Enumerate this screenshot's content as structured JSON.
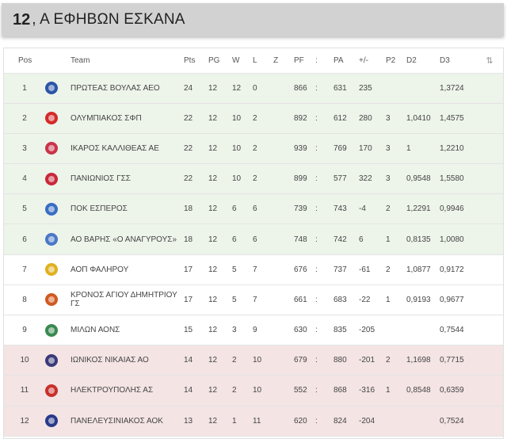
{
  "header": {
    "number": "12",
    "title": ", Α ΕΦΗΒΩΝ ΕΣΚΑΝΑ"
  },
  "columns": {
    "pos": "Pos",
    "team": "Team",
    "pts": "Pts",
    "pg": "PG",
    "w": "W",
    "l": "L",
    "z": "Z",
    "pf": "PF",
    "colon": ":",
    "pa": "PA",
    "diff": "+/-",
    "p2": "P2",
    "d2": "D2",
    "d3": "D3",
    "sort_icon": "sort-arrows-icon"
  },
  "rows": [
    {
      "pos": "1",
      "team": "ΠΡΩΤΕΑΣ ΒΟΥΛΑΣ ΑΕΟ",
      "pts": "24",
      "pg": "12",
      "w": "12",
      "l": "0",
      "pf": "866",
      "pa": "631",
      "diff": "235",
      "p2": "",
      "d2": "",
      "d3": "1,3724",
      "zone": "green",
      "logo_color": "#2a56a8"
    },
    {
      "pos": "2",
      "team": "ΟΛΥΜΠΙΑΚΟΣ ΣΦΠ",
      "pts": "22",
      "pg": "12",
      "w": "10",
      "l": "2",
      "pf": "892",
      "pa": "612",
      "diff": "280",
      "p2": "3",
      "d2": "1,0410",
      "d3": "1,4575",
      "zone": "green",
      "logo_color": "#d42a2a"
    },
    {
      "pos": "3",
      "team": "ΙΚΑΡΟΣ ΚΑΛΛΙΘΕΑΣ ΑΕ",
      "pts": "22",
      "pg": "12",
      "w": "10",
      "l": "2",
      "pf": "939",
      "pa": "769",
      "diff": "170",
      "p2": "3",
      "d2": "1",
      "d3": "1,2210",
      "zone": "green",
      "logo_color": "#c9344a"
    },
    {
      "pos": "4",
      "team": "ΠΑΝΙΩΝΙΟΣ ΓΣΣ",
      "pts": "22",
      "pg": "12",
      "w": "10",
      "l": "2",
      "pf": "899",
      "pa": "577",
      "diff": "322",
      "p2": "3",
      "d2": "0,9548",
      "d3": "1,5580",
      "zone": "green",
      "logo_color": "#c8283a"
    },
    {
      "pos": "5",
      "team": "ΠΟΚ ΕΣΠΕΡΟΣ",
      "pts": "18",
      "pg": "12",
      "w": "6",
      "l": "6",
      "pf": "739",
      "pa": "743",
      "diff": "-4",
      "p2": "2",
      "d2": "1,2291",
      "d3": "0,9946",
      "zone": "green",
      "logo_color": "#3a6ec4"
    },
    {
      "pos": "6",
      "team": "ΑΟ ΒΑΡΗΣ «Ο ΑΝΑΓΥΡΟΥΣ»",
      "pts": "18",
      "pg": "12",
      "w": "6",
      "l": "6",
      "pf": "748",
      "pa": "742",
      "diff": "6",
      "p2": "1",
      "d2": "0,8135",
      "d3": "1,0080",
      "zone": "green",
      "logo_color": "#4a78c8"
    },
    {
      "pos": "7",
      "team": "ΑΟΠ ΦΑΛΗΡΟΥ",
      "pts": "17",
      "pg": "12",
      "w": "5",
      "l": "7",
      "pf": "676",
      "pa": "737",
      "diff": "-61",
      "p2": "2",
      "d2": "1,0877",
      "d3": "0,9172",
      "zone": "white",
      "logo_color": "#e0b020"
    },
    {
      "pos": "8",
      "team": "ΚΡΟΝΟΣ ΑΓΙΟΥ ΔΗΜΗΤΡΙΟΥ ΓΣ",
      "pts": "17",
      "pg": "12",
      "w": "5",
      "l": "7",
      "pf": "661",
      "pa": "683",
      "diff": "-22",
      "p2": "1",
      "d2": "0,9193",
      "d3": "0,9677",
      "zone": "white",
      "logo_color": "#d05a20"
    },
    {
      "pos": "9",
      "team": "ΜΙΛΩΝ ΑΟΝΣ",
      "pts": "15",
      "pg": "12",
      "w": "3",
      "l": "9",
      "pf": "630",
      "pa": "835",
      "diff": "-205",
      "p2": "",
      "d2": "",
      "d3": "0,7544",
      "zone": "white",
      "logo_color": "#3a8a50"
    },
    {
      "pos": "10",
      "team": "ΙΩΝΙΚΟΣ ΝΙΚΑΙΑΣ ΑΟ",
      "pts": "14",
      "pg": "12",
      "w": "2",
      "l": "10",
      "pf": "679",
      "pa": "880",
      "diff": "-201",
      "p2": "2",
      "d2": "1,1698",
      "d3": "0,7715",
      "zone": "red",
      "logo_color": "#3a3a7a"
    },
    {
      "pos": "11",
      "team": "ΗΛΕΚΤΡΟΥΠΟΛΗΣ ΑΣ",
      "pts": "14",
      "pg": "12",
      "w": "2",
      "l": "10",
      "pf": "552",
      "pa": "868",
      "diff": "-316",
      "p2": "1",
      "d2": "0,8548",
      "d3": "0,6359",
      "zone": "red",
      "logo_color": "#c8302a"
    },
    {
      "pos": "12",
      "team": "ΠΑΝΕΛΕΥΣΙΝΙΑΚΟΣ ΑΟΚ",
      "pts": "13",
      "pg": "12",
      "w": "1",
      "l": "11",
      "pf": "620",
      "pa": "824",
      "diff": "-204",
      "p2": "",
      "d2": "",
      "d3": "0,7524",
      "zone": "red",
      "logo_color": "#2a3a8a"
    }
  ]
}
